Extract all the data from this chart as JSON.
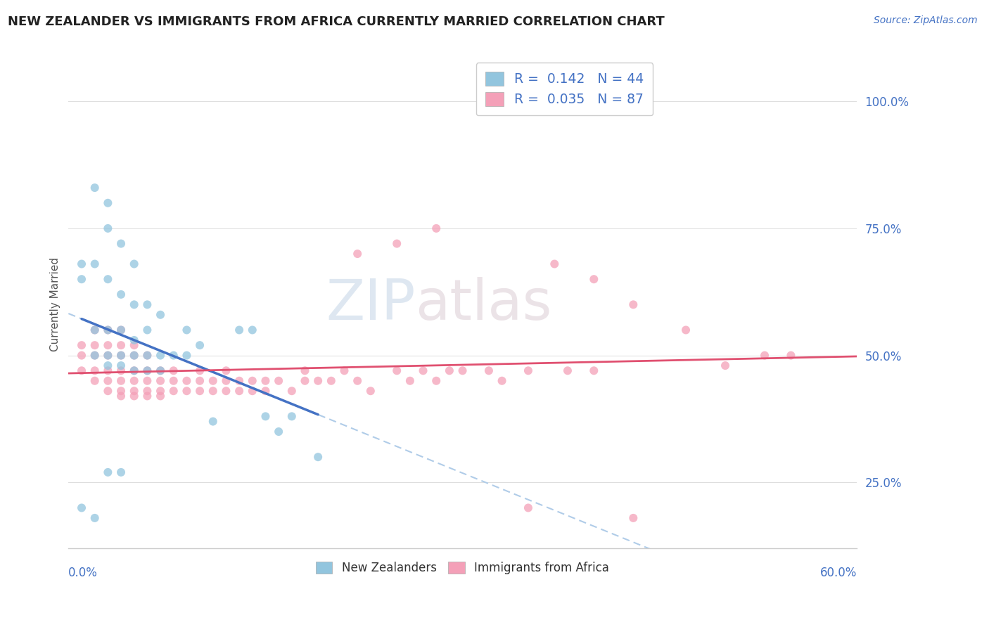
{
  "title": "NEW ZEALANDER VS IMMIGRANTS FROM AFRICA CURRENTLY MARRIED CORRELATION CHART",
  "source_text": "Source: ZipAtlas.com",
  "ylabel": "Currently Married",
  "y_ticks": [
    0.25,
    0.5,
    0.75,
    1.0
  ],
  "y_tick_labels": [
    "25.0%",
    "50.0%",
    "75.0%",
    "100.0%"
  ],
  "x_lim": [
    0.0,
    0.6
  ],
  "y_lim": [
    0.12,
    1.08
  ],
  "legend_entries": [
    {
      "label": "R =  0.142   N = 44"
    },
    {
      "label": "R =  0.035   N = 87"
    }
  ],
  "legend_labels_bottom": [
    "New Zealanders",
    "Immigrants from Africa"
  ],
  "nz_color": "#92c5de",
  "af_color": "#f4a0b8",
  "nz_line_color": "#4472c4",
  "af_line_color": "#e05070",
  "dashed_line_color": "#92c5de",
  "watermark_zip": "ZIP",
  "watermark_atlas": "atlas",
  "nz_points_x": [
    0.01,
    0.01,
    0.02,
    0.02,
    0.02,
    0.02,
    0.03,
    0.03,
    0.03,
    0.03,
    0.03,
    0.03,
    0.04,
    0.04,
    0.04,
    0.04,
    0.04,
    0.05,
    0.05,
    0.05,
    0.05,
    0.05,
    0.06,
    0.06,
    0.06,
    0.06,
    0.07,
    0.07,
    0.07,
    0.08,
    0.09,
    0.09,
    0.1,
    0.11,
    0.13,
    0.14,
    0.15,
    0.16,
    0.17,
    0.19,
    0.01,
    0.02,
    0.03,
    0.04
  ],
  "nz_points_y": [
    0.65,
    0.68,
    0.5,
    0.55,
    0.68,
    0.83,
    0.48,
    0.5,
    0.55,
    0.65,
    0.75,
    0.8,
    0.48,
    0.5,
    0.55,
    0.62,
    0.72,
    0.47,
    0.5,
    0.53,
    0.6,
    0.68,
    0.47,
    0.5,
    0.55,
    0.6,
    0.47,
    0.5,
    0.58,
    0.5,
    0.5,
    0.55,
    0.52,
    0.37,
    0.55,
    0.55,
    0.38,
    0.35,
    0.38,
    0.3,
    0.2,
    0.18,
    0.27,
    0.27
  ],
  "af_points_x": [
    0.01,
    0.01,
    0.01,
    0.02,
    0.02,
    0.02,
    0.02,
    0.02,
    0.03,
    0.03,
    0.03,
    0.03,
    0.03,
    0.03,
    0.04,
    0.04,
    0.04,
    0.04,
    0.04,
    0.04,
    0.04,
    0.05,
    0.05,
    0.05,
    0.05,
    0.05,
    0.05,
    0.06,
    0.06,
    0.06,
    0.06,
    0.06,
    0.07,
    0.07,
    0.07,
    0.07,
    0.08,
    0.08,
    0.08,
    0.09,
    0.09,
    0.1,
    0.1,
    0.1,
    0.11,
    0.11,
    0.12,
    0.12,
    0.12,
    0.13,
    0.13,
    0.14,
    0.14,
    0.15,
    0.15,
    0.16,
    0.17,
    0.18,
    0.18,
    0.19,
    0.2,
    0.21,
    0.22,
    0.23,
    0.25,
    0.26,
    0.27,
    0.28,
    0.29,
    0.3,
    0.32,
    0.33,
    0.35,
    0.38,
    0.4,
    0.22,
    0.25,
    0.28,
    0.37,
    0.4,
    0.43,
    0.47,
    0.53,
    0.55,
    0.35,
    0.43,
    0.5
  ],
  "af_points_y": [
    0.47,
    0.5,
    0.52,
    0.45,
    0.47,
    0.5,
    0.52,
    0.55,
    0.43,
    0.45,
    0.47,
    0.5,
    0.52,
    0.55,
    0.43,
    0.45,
    0.47,
    0.5,
    0.52,
    0.55,
    0.42,
    0.43,
    0.45,
    0.47,
    0.5,
    0.52,
    0.42,
    0.43,
    0.45,
    0.47,
    0.5,
    0.42,
    0.43,
    0.45,
    0.47,
    0.42,
    0.43,
    0.45,
    0.47,
    0.43,
    0.45,
    0.43,
    0.45,
    0.47,
    0.43,
    0.45,
    0.43,
    0.45,
    0.47,
    0.43,
    0.45,
    0.43,
    0.45,
    0.43,
    0.45,
    0.45,
    0.43,
    0.45,
    0.47,
    0.45,
    0.45,
    0.47,
    0.45,
    0.43,
    0.47,
    0.45,
    0.47,
    0.45,
    0.47,
    0.47,
    0.47,
    0.45,
    0.47,
    0.47,
    0.47,
    0.7,
    0.72,
    0.75,
    0.68,
    0.65,
    0.6,
    0.55,
    0.5,
    0.5,
    0.2,
    0.18,
    0.48
  ]
}
